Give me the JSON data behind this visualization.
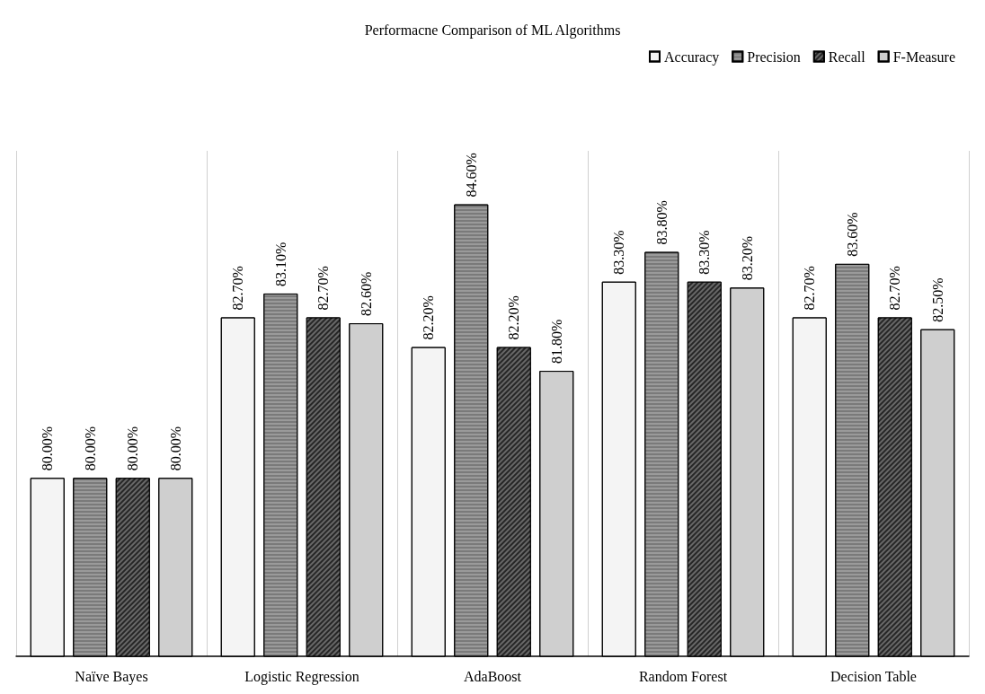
{
  "chart_data": {
    "type": "bar",
    "title": "Performacne Comparison of ML Algorithms",
    "categories": [
      "Naïve Bayes",
      "Logistic Regression",
      "AdaBoost",
      "Random Forest",
      "Decision Table"
    ],
    "series": [
      {
        "name": "Accuracy",
        "color": "#f4f4f4",
        "values": [
          80.0,
          82.7,
          82.2,
          83.3,
          82.7
        ],
        "value_labels": [
          "80.00%",
          "82.70%",
          "82.20%",
          "83.30%",
          "82.70%"
        ]
      },
      {
        "name": "Precision",
        "color": "#9a9a9a",
        "values": [
          80.0,
          83.1,
          84.6,
          83.8,
          83.6
        ],
        "value_labels": [
          "80.00%",
          "83.10%",
          "84.60%",
          "83.80%",
          "83.60%"
        ]
      },
      {
        "name": "Recall",
        "color": "#262626",
        "values": [
          80.0,
          82.7,
          82.2,
          83.3,
          82.7
        ],
        "value_labels": [
          "80.00%",
          "82.70%",
          "82.20%",
          "83.30%",
          "82.70%"
        ]
      },
      {
        "name": "F-Measure",
        "color": "#cfcfcf",
        "values": [
          80.0,
          82.6,
          81.8,
          83.2,
          82.5
        ],
        "value_labels": [
          "80.00%",
          "82.60%",
          "81.80%",
          "83.20%",
          "82.50%"
        ]
      }
    ],
    "ylim": [
      77,
      85.5
    ],
    "grid": "x",
    "legend": "top right"
  }
}
